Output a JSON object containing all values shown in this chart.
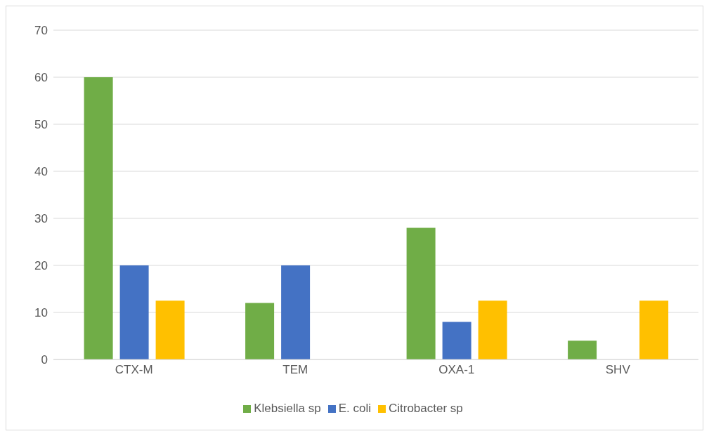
{
  "chart_data": {
    "type": "bar",
    "categories": [
      "CTX-M",
      "TEM",
      "OXA-1",
      "SHV"
    ],
    "series": [
      {
        "name": "Klebsiella sp",
        "color": "#70ad47",
        "values": [
          60,
          12,
          28,
          4
        ]
      },
      {
        "name": "E. coli",
        "color": "#4472c4",
        "values": [
          20,
          20,
          8,
          null
        ]
      },
      {
        "name": "Citrobacter sp",
        "color": "#ffc000",
        "values": [
          12.5,
          null,
          12.5,
          12.5
        ]
      }
    ],
    "ylim": [
      0,
      70
    ],
    "yticks": [
      0,
      10,
      20,
      30,
      40,
      50,
      60,
      70
    ],
    "grid": "y",
    "legend": "bottom"
  }
}
